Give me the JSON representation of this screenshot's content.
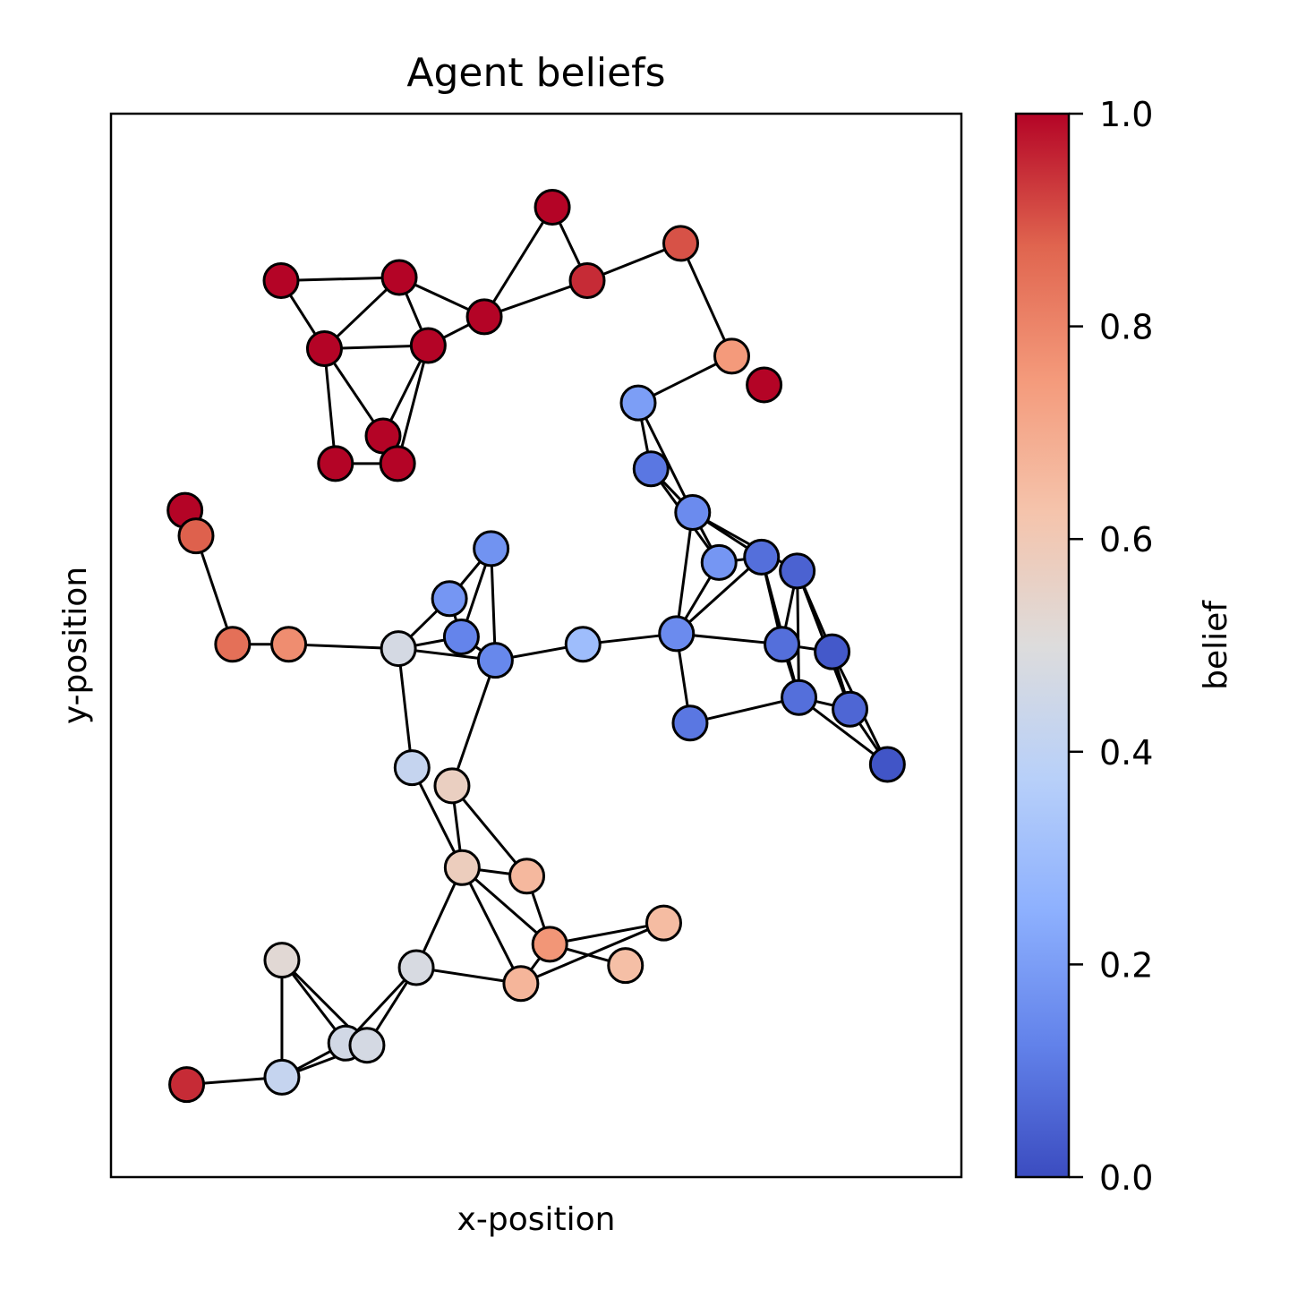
{
  "chart_data": {
    "type": "scatter",
    "title": "Agent beliefs",
    "xlabel": "x-position",
    "ylabel": "y-position",
    "xlim": [
      0,
      1
    ],
    "ylim": [
      0,
      1
    ],
    "xticks": [],
    "yticks": [],
    "colorbar": {
      "label": "belief",
      "cmap": "coolwarm",
      "range": [
        0,
        1
      ],
      "ticks": [
        "0.0",
        "0.2",
        "0.4",
        "0.6",
        "0.8",
        "1.0"
      ],
      "stops": [
        "#3b4cc0",
        "#6282ea",
        "#8db0fe",
        "#b8d0f9",
        "#dddcdc",
        "#f5c4ac",
        "#f49a7b",
        "#e0654f",
        "#b40426"
      ]
    },
    "nodes": [
      {
        "id": 0,
        "x": 0.2,
        "y": 0.843,
        "belief": 1.0
      },
      {
        "id": 1,
        "x": 0.339,
        "y": 0.846,
        "belief": 1.0
      },
      {
        "id": 2,
        "x": 0.251,
        "y": 0.779,
        "belief": 1.0
      },
      {
        "id": 3,
        "x": 0.373,
        "y": 0.782,
        "belief": 1.0
      },
      {
        "id": 4,
        "x": 0.439,
        "y": 0.809,
        "belief": 1.0
      },
      {
        "id": 5,
        "x": 0.519,
        "y": 0.912,
        "belief": 1.0
      },
      {
        "id": 6,
        "x": 0.56,
        "y": 0.843,
        "belief": 0.95
      },
      {
        "id": 7,
        "x": 0.67,
        "y": 0.878,
        "belief": 0.9
      },
      {
        "id": 8,
        "x": 0.73,
        "y": 0.772,
        "belief": 0.75
      },
      {
        "id": 9,
        "x": 0.768,
        "y": 0.745,
        "belief": 1.0
      },
      {
        "id": 10,
        "x": 0.32,
        "y": 0.697,
        "belief": 1.0
      },
      {
        "id": 11,
        "x": 0.264,
        "y": 0.671,
        "belief": 1.0
      },
      {
        "id": 12,
        "x": 0.337,
        "y": 0.671,
        "belief": 1.0
      },
      {
        "id": 13,
        "x": 0.62,
        "y": 0.728,
        "belief": 0.2
      },
      {
        "id": 14,
        "x": 0.635,
        "y": 0.666,
        "belief": 0.1
      },
      {
        "id": 15,
        "x": 0.684,
        "y": 0.625,
        "belief": 0.15
      },
      {
        "id": 16,
        "x": 0.715,
        "y": 0.578,
        "belief": 0.18
      },
      {
        "id": 17,
        "x": 0.765,
        "y": 0.583,
        "belief": 0.08
      },
      {
        "id": 18,
        "x": 0.807,
        "y": 0.57,
        "belief": 0.05
      },
      {
        "id": 19,
        "x": 0.665,
        "y": 0.511,
        "belief": 0.15
      },
      {
        "id": 20,
        "x": 0.789,
        "y": 0.501,
        "belief": 0.08
      },
      {
        "id": 21,
        "x": 0.848,
        "y": 0.494,
        "belief": 0.03
      },
      {
        "id": 22,
        "x": 0.809,
        "y": 0.451,
        "belief": 0.08
      },
      {
        "id": 23,
        "x": 0.869,
        "y": 0.44,
        "belief": 0.06
      },
      {
        "id": 24,
        "x": 0.681,
        "y": 0.427,
        "belief": 0.1
      },
      {
        "id": 25,
        "x": 0.913,
        "y": 0.388,
        "belief": 0.02
      },
      {
        "id": 26,
        "x": 0.087,
        "y": 0.627,
        "belief": 1.0
      },
      {
        "id": 27,
        "x": 0.1,
        "y": 0.603,
        "belief": 0.88
      },
      {
        "id": 28,
        "x": 0.143,
        "y": 0.501,
        "belief": 0.85
      },
      {
        "id": 29,
        "x": 0.209,
        "y": 0.501,
        "belief": 0.78
      },
      {
        "id": 30,
        "x": 0.338,
        "y": 0.497,
        "belief": 0.47
      },
      {
        "id": 31,
        "x": 0.398,
        "y": 0.544,
        "belief": 0.18
      },
      {
        "id": 32,
        "x": 0.447,
        "y": 0.591,
        "belief": 0.17
      },
      {
        "id": 33,
        "x": 0.412,
        "y": 0.508,
        "belief": 0.13
      },
      {
        "id": 34,
        "x": 0.452,
        "y": 0.486,
        "belief": 0.14
      },
      {
        "id": 35,
        "x": 0.555,
        "y": 0.501,
        "belief": 0.3
      },
      {
        "id": 36,
        "x": 0.354,
        "y": 0.385,
        "belief": 0.42
      },
      {
        "id": 37,
        "x": 0.401,
        "y": 0.368,
        "belief": 0.57
      },
      {
        "id": 38,
        "x": 0.413,
        "y": 0.291,
        "belief": 0.58
      },
      {
        "id": 39,
        "x": 0.489,
        "y": 0.283,
        "belief": 0.66
      },
      {
        "id": 40,
        "x": 0.516,
        "y": 0.219,
        "belief": 0.76
      },
      {
        "id": 41,
        "x": 0.65,
        "y": 0.239,
        "belief": 0.65
      },
      {
        "id": 42,
        "x": 0.605,
        "y": 0.199,
        "belief": 0.64
      },
      {
        "id": 43,
        "x": 0.201,
        "y": 0.204,
        "belief": 0.52
      },
      {
        "id": 44,
        "x": 0.359,
        "y": 0.197,
        "belief": 0.48
      },
      {
        "id": 45,
        "x": 0.482,
        "y": 0.182,
        "belief": 0.67
      },
      {
        "id": 46,
        "x": 0.276,
        "y": 0.126,
        "belief": 0.46
      },
      {
        "id": 47,
        "x": 0.301,
        "y": 0.124,
        "belief": 0.47
      },
      {
        "id": 48,
        "x": 0.089,
        "y": 0.087,
        "belief": 0.95
      },
      {
        "id": 49,
        "x": 0.201,
        "y": 0.094,
        "belief": 0.42
      }
    ],
    "edges": [
      [
        0,
        1
      ],
      [
        0,
        2
      ],
      [
        1,
        2
      ],
      [
        1,
        3
      ],
      [
        2,
        3
      ],
      [
        1,
        4
      ],
      [
        3,
        4
      ],
      [
        4,
        5
      ],
      [
        4,
        6
      ],
      [
        5,
        6
      ],
      [
        6,
        7
      ],
      [
        7,
        8
      ],
      [
        8,
        13
      ],
      [
        2,
        10
      ],
      [
        2,
        11
      ],
      [
        3,
        10
      ],
      [
        3,
        12
      ],
      [
        11,
        12
      ],
      [
        13,
        14
      ],
      [
        13,
        15
      ],
      [
        14,
        15
      ],
      [
        14,
        16
      ],
      [
        15,
        16
      ],
      [
        15,
        17
      ],
      [
        15,
        18
      ],
      [
        16,
        17
      ],
      [
        15,
        19
      ],
      [
        16,
        19
      ],
      [
        17,
        19
      ],
      [
        17,
        20
      ],
      [
        18,
        20
      ],
      [
        17,
        22
      ],
      [
        18,
        22
      ],
      [
        18,
        21
      ],
      [
        18,
        23
      ],
      [
        19,
        20
      ],
      [
        19,
        24
      ],
      [
        20,
        21
      ],
      [
        20,
        22
      ],
      [
        21,
        23
      ],
      [
        21,
        25
      ],
      [
        22,
        23
      ],
      [
        22,
        25
      ],
      [
        24,
        22
      ],
      [
        23,
        25
      ],
      [
        26,
        27
      ],
      [
        27,
        28
      ],
      [
        28,
        29
      ],
      [
        29,
        30
      ],
      [
        30,
        31
      ],
      [
        30,
        33
      ],
      [
        30,
        34
      ],
      [
        31,
        33
      ],
      [
        31,
        32
      ],
      [
        32,
        33
      ],
      [
        32,
        34
      ],
      [
        33,
        34
      ],
      [
        34,
        35
      ],
      [
        35,
        19
      ],
      [
        30,
        36
      ],
      [
        34,
        37
      ],
      [
        36,
        38
      ],
      [
        37,
        38
      ],
      [
        37,
        39
      ],
      [
        38,
        39
      ],
      [
        38,
        40
      ],
      [
        39,
        40
      ],
      [
        38,
        45
      ],
      [
        38,
        44
      ],
      [
        40,
        42
      ],
      [
        40,
        41
      ],
      [
        41,
        45
      ],
      [
        40,
        45
      ],
      [
        44,
        45
      ],
      [
        43,
        46
      ],
      [
        43,
        47
      ],
      [
        43,
        49
      ],
      [
        46,
        44
      ],
      [
        47,
        44
      ],
      [
        46,
        49
      ],
      [
        47,
        49
      ],
      [
        48,
        49
      ]
    ]
  }
}
